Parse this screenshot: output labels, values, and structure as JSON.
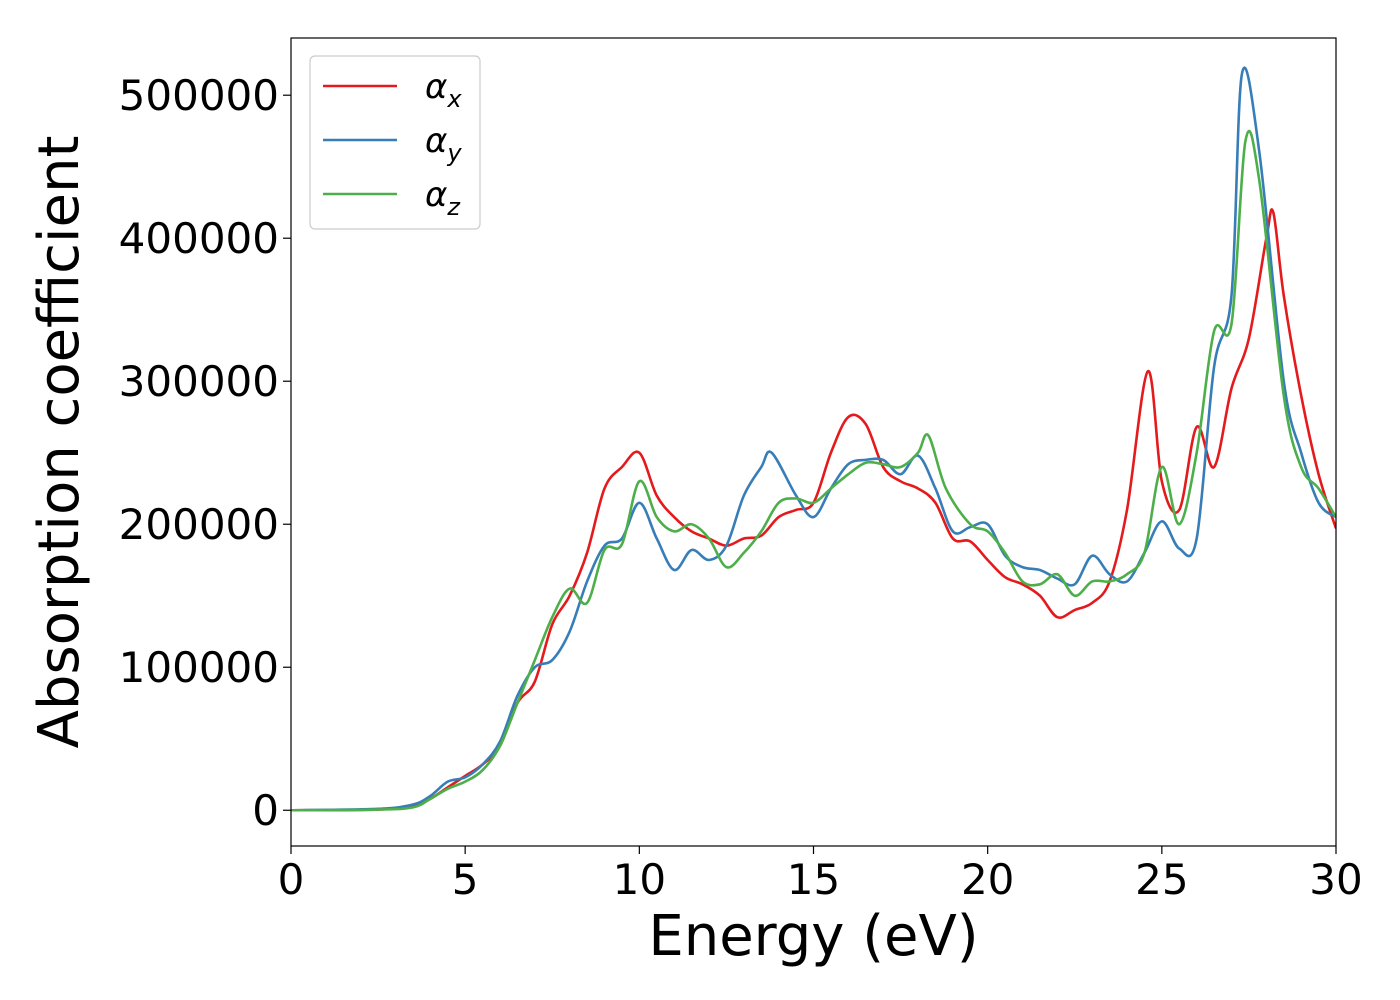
{
  "chart_data": {
    "type": "line",
    "title": "",
    "xlabel": "Energy (eV)",
    "ylabel": "Absorption coefficient",
    "xlim": [
      0,
      30
    ],
    "ylim": [
      -25000,
      540000
    ],
    "xticks": [
      0,
      5,
      10,
      15,
      20,
      25,
      30
    ],
    "yticks": [
      0,
      100000,
      200000,
      300000,
      400000,
      500000
    ],
    "xtick_labels": [
      "0",
      "5",
      "10",
      "15",
      "20",
      "25",
      "30"
    ],
    "ytick_labels": [
      "0",
      "100000",
      "200000",
      "300000",
      "400000",
      "500000"
    ],
    "grid": false,
    "legend_position": "top-left",
    "series": [
      {
        "name": "αx",
        "symbol": "α",
        "subscript": "x",
        "color": "#e41a1c",
        "x": [
          0,
          2.5,
          3.5,
          4,
          4.5,
          5,
          5.5,
          6,
          6.5,
          7,
          7.5,
          8,
          8.5,
          9,
          9.5,
          10,
          10.5,
          11,
          11.5,
          12,
          12.5,
          13,
          13.5,
          14,
          14.5,
          15,
          15.5,
          16,
          16.5,
          17,
          17.5,
          18,
          18.5,
          19,
          19.5,
          20,
          20.5,
          21,
          21.5,
          22,
          22.5,
          23,
          23.5,
          24,
          24.6,
          25,
          25.5,
          26,
          26.5,
          27,
          27.5,
          28,
          28.2,
          28.5,
          29,
          29.5,
          30
        ],
        "values": [
          0,
          500,
          3000,
          8000,
          16000,
          24000,
          32000,
          45000,
          75000,
          90000,
          130000,
          150000,
          180000,
          225000,
          240000,
          250000,
          220000,
          205000,
          195000,
          190000,
          185000,
          190000,
          192000,
          205000,
          210000,
          215000,
          250000,
          275000,
          270000,
          240000,
          230000,
          225000,
          215000,
          190000,
          188000,
          175000,
          163000,
          158000,
          150000,
          135000,
          140000,
          145000,
          160000,
          210000,
          307000,
          230000,
          210000,
          268000,
          240000,
          295000,
          330000,
          400000,
          418000,
          360000,
          290000,
          235000,
          197000
        ]
      },
      {
        "name": "αy",
        "symbol": "α",
        "subscript": "y",
        "color": "#377eb8",
        "x": [
          0,
          2.5,
          3.5,
          4,
          4.5,
          5,
          5.5,
          6,
          6.5,
          7,
          7.5,
          8,
          8.5,
          9,
          9.5,
          10,
          10.5,
          11,
          11.5,
          12,
          12.5,
          13,
          13.5,
          13.8,
          14.5,
          15,
          15.5,
          16,
          16.5,
          17,
          17.5,
          18,
          18.5,
          19,
          19.5,
          20,
          20.5,
          21,
          21.5,
          22,
          22.5,
          23,
          23.5,
          24,
          24.5,
          25,
          25.5,
          26,
          26.5,
          27,
          27.3,
          27.8,
          28.5,
          29,
          29.5,
          30
        ],
        "values": [
          0,
          1000,
          4000,
          10000,
          20000,
          23000,
          32000,
          48000,
          80000,
          100000,
          105000,
          125000,
          160000,
          185000,
          190000,
          215000,
          190000,
          168000,
          182000,
          175000,
          185000,
          220000,
          240000,
          250000,
          220000,
          205000,
          225000,
          242000,
          245000,
          245000,
          235000,
          248000,
          225000,
          195000,
          198000,
          200000,
          178000,
          170000,
          168000,
          162000,
          158000,
          178000,
          165000,
          160000,
          180000,
          202000,
          183000,
          190000,
          310000,
          360000,
          515000,
          460000,
          300000,
          250000,
          215000,
          205000
        ]
      },
      {
        "name": "αz",
        "symbol": "α",
        "subscript": "z",
        "color": "#4daf4a",
        "x": [
          0,
          2.5,
          3.5,
          4,
          4.5,
          5,
          5.5,
          6,
          6.5,
          7,
          7.5,
          8,
          8.5,
          9,
          9.5,
          10,
          10.5,
          11,
          11.5,
          12,
          12.5,
          13,
          13.5,
          14,
          14.5,
          15,
          15.5,
          16,
          16.5,
          17,
          17.5,
          18,
          18.3,
          18.8,
          19.5,
          20,
          20.5,
          21,
          21.5,
          22,
          22.5,
          23,
          23.5,
          24,
          24.5,
          25,
          25.5,
          26,
          26.5,
          27,
          27.4,
          27.8,
          28.5,
          29,
          29.5,
          30
        ],
        "values": [
          0,
          500,
          2000,
          8000,
          15000,
          20000,
          28000,
          45000,
          75000,
          105000,
          135000,
          155000,
          145000,
          182000,
          186000,
          230000,
          205000,
          195000,
          200000,
          190000,
          170000,
          180000,
          195000,
          215000,
          218000,
          215000,
          225000,
          235000,
          243000,
          242000,
          240000,
          250000,
          262000,
          225000,
          200000,
          195000,
          180000,
          160000,
          158000,
          165000,
          150000,
          160000,
          160000,
          165000,
          180000,
          240000,
          200000,
          250000,
          335000,
          340000,
          468000,
          440000,
          290000,
          240000,
          225000,
          205000
        ]
      }
    ]
  }
}
